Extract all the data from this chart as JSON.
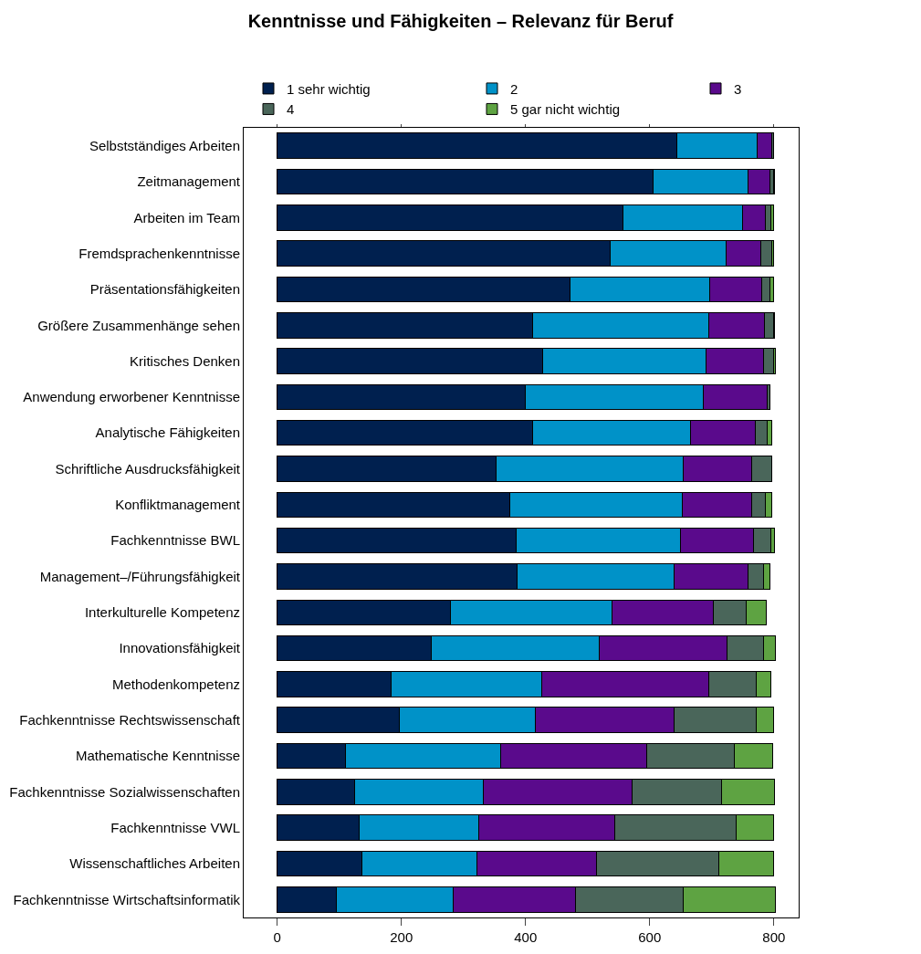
{
  "chart_data": {
    "type": "bar",
    "orientation": "horizontal",
    "stacked": true,
    "title": "Kenntnisse und Fähigkeiten – Relevanz für Beruf",
    "categories": [
      "Selbstständiges Arbeiten",
      "Zeitmanagement",
      "Arbeiten im Team",
      "Fremdsprachenkenntnisse",
      "Präsentationsfähigkeiten",
      "Größere Zusammenhänge sehen",
      "Kritisches Denken",
      "Anwendung erworbener Kenntnisse",
      "Analytische Fähigkeiten",
      "Schriftliche Ausdrucksfähigkeit",
      "Konfliktmanagement",
      "Fachkenntnisse BWL",
      "Management–/Führungsfähigkeit",
      "Interkulturelle Kompetenz",
      "Innovationsfähigkeit",
      "Methodenkompetenz",
      "Fachkenntnisse Rechtswissenschaft",
      "Mathematische Kenntnisse",
      "Fachkenntnisse Sozialwissenschaften",
      "Fachkenntnisse VWL",
      "Wissenschaftliches Arbeiten",
      "Fachkenntnisse Wirtschaftsinformatik"
    ],
    "series": [
      {
        "name": "1 sehr wichtig",
        "color": "#00204f",
        "values": [
          643,
          605,
          557,
          536,
          472,
          411,
          428,
          400,
          412,
          353,
          375,
          385,
          386,
          279,
          248,
          183,
          196,
          110,
          124,
          132,
          136,
          95
        ]
      },
      {
        "name": "2",
        "color": "#0092c8",
        "values": [
          130,
          153,
          193,
          187,
          224,
          284,
          263,
          287,
          254,
          301,
          278,
          264,
          254,
          261,
          271,
          243,
          220,
          250,
          208,
          192,
          185,
          188
        ]
      },
      {
        "name": "3",
        "color": "#5a0a8c",
        "values": [
          23,
          35,
          36,
          56,
          84,
          90,
          92,
          102,
          104,
          110,
          111,
          118,
          118,
          162,
          205,
          269,
          223,
          235,
          240,
          219,
          193,
          198
        ]
      },
      {
        "name": "4",
        "color": "#4a665a",
        "values": [
          3,
          6,
          9,
          17,
          14,
          14,
          16,
          5,
          19,
          32,
          23,
          28,
          26,
          54,
          59,
          76,
          133,
          142,
          144,
          197,
          197,
          173
        ]
      },
      {
        "name": "5 gar nicht wichtig",
        "color": "#5ea342",
        "values": [
          1,
          2,
          4,
          3,
          6,
          2,
          3,
          null,
          8,
          null,
          9,
          6,
          10,
          32,
          19,
          24,
          27,
          61,
          85,
          60,
          88,
          148
        ]
      }
    ],
    "xlim": [
      -54,
      840
    ],
    "xticks": [
      0,
      200,
      400,
      600,
      800
    ],
    "grid": false,
    "legend": "top"
  }
}
